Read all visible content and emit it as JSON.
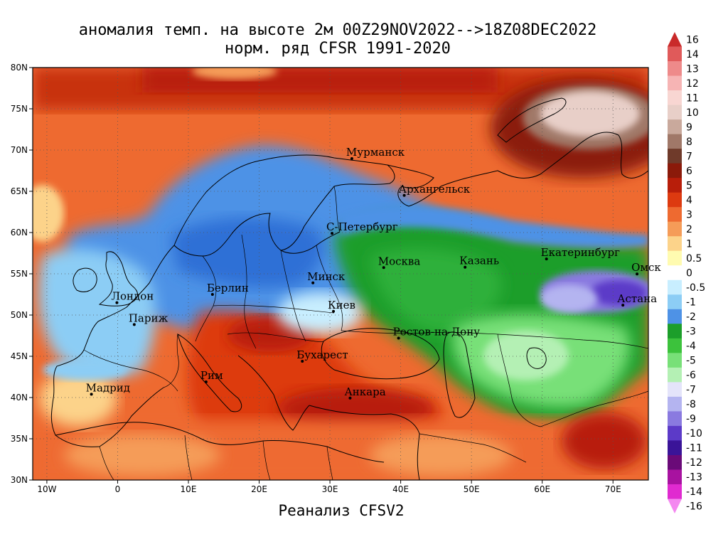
{
  "title": {
    "line1": "аномалия темп. на высоте 2м 00Z29NOV2022-->18Z08DEC2022",
    "line2": "норм. ряд CFSR 1991-2020"
  },
  "footer": "Реанализ CFSV2",
  "map": {
    "lon_range": [
      -12,
      75
    ],
    "lat_range": [
      30,
      80
    ],
    "lat_ticks": [
      "30N",
      "35N",
      "40N",
      "45N",
      "50N",
      "55N",
      "60N",
      "65N",
      "70N",
      "75N",
      "80N"
    ],
    "lon_ticks": [
      "10W",
      "0",
      "10E",
      "20E",
      "30E",
      "40E",
      "50E",
      "60E",
      "70E"
    ],
    "cities": [
      {
        "name": "Мурманск",
        "lon": 33.1,
        "lat": 68.97
      },
      {
        "name": "Архангельск",
        "lon": 40.5,
        "lat": 64.5
      },
      {
        "name": "С-Петербург",
        "lon": 30.3,
        "lat": 59.9
      },
      {
        "name": "Москва",
        "lon": 37.6,
        "lat": 55.75
      },
      {
        "name": "Казань",
        "lon": 49.1,
        "lat": 55.8
      },
      {
        "name": "Екатеринбург",
        "lon": 60.6,
        "lat": 56.8
      },
      {
        "name": "Омск",
        "lon": 73.4,
        "lat": 54.98
      },
      {
        "name": "Астана",
        "lon": 71.4,
        "lat": 51.2
      },
      {
        "name": "Минск",
        "lon": 27.6,
        "lat": 53.9
      },
      {
        "name": "Киев",
        "lon": 30.5,
        "lat": 50.45
      },
      {
        "name": "Берлин",
        "lon": 13.4,
        "lat": 52.5
      },
      {
        "name": "Лондон",
        "lon": -0.1,
        "lat": 51.5
      },
      {
        "name": "Париж",
        "lon": 2.35,
        "lat": 48.85
      },
      {
        "name": "Ростов-на-Дону",
        "lon": 39.7,
        "lat": 47.2
      },
      {
        "name": "Бухарест",
        "lon": 26.1,
        "lat": 44.4
      },
      {
        "name": "Рим",
        "lon": 12.5,
        "lat": 41.9
      },
      {
        "name": "Мадрид",
        "lon": -3.7,
        "lat": 40.4
      },
      {
        "name": "Анкара",
        "lon": 32.85,
        "lat": 39.93
      }
    ]
  },
  "colorbar": {
    "labels": [
      "16",
      "14",
      "13",
      "12",
      "11",
      "10",
      "9",
      "8",
      "7",
      "6",
      "5",
      "4",
      "3",
      "2",
      "1",
      "0.5",
      "0",
      "-0.5",
      "-1",
      "-2",
      "-3",
      "-4",
      "-5",
      "-6",
      "-7",
      "-8",
      "-9",
      "-10",
      "-11",
      "-12",
      "-13",
      "-14",
      "-16"
    ],
    "colors": [
      "#c92a2a",
      "#e05a5a",
      "#ee8a8a",
      "#f6b4b4",
      "#f8d6d2",
      "#e8cfc8",
      "#c9a99c",
      "#a07868",
      "#6f3a2a",
      "#8b1a0a",
      "#b81e0a",
      "#dd3a10",
      "#ee6a30",
      "#f59c58",
      "#fcd38a",
      "#fffbb0",
      "#ffffff",
      "#c8eeff",
      "#8ccdf5",
      "#4e92e6",
      "#1c9e2a",
      "#3cc23c",
      "#78e078",
      "#b4f0b4",
      "#e4e4fa",
      "#b4b4f0",
      "#8a7ae0",
      "#5c3ac8",
      "#3a1498",
      "#6a0a78",
      "#a812a0",
      "#e02ad0",
      "#f488f0"
    ]
  }
}
